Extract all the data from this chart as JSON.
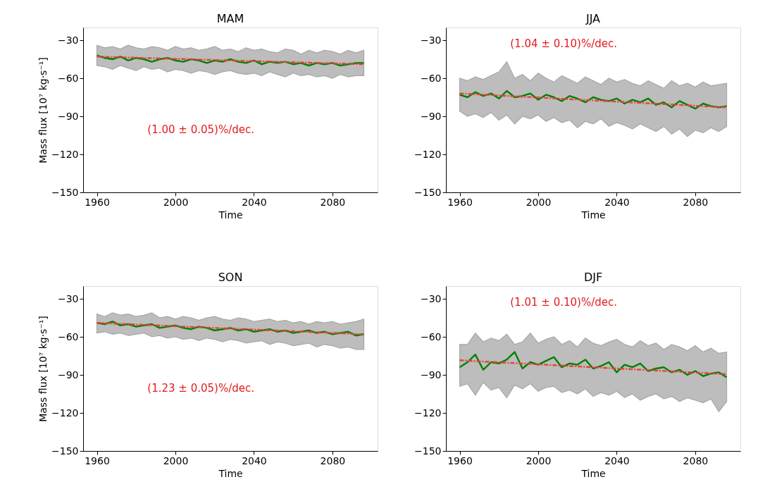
{
  "chart_data": [
    {
      "type": "line",
      "title": "MAM",
      "xlabel": "Time",
      "ylabel": "Mass flux [10⁷ kg·s⁻¹]",
      "xlim": [
        1953,
        2103
      ],
      "xticks": [
        1960,
        2000,
        2040,
        2080
      ],
      "ylim": [
        -150,
        -20
      ],
      "yticks": [
        -150,
        -120,
        -90,
        -60,
        -30
      ],
      "annotations": [
        "(1.00 ± 0.05)%/dec."
      ],
      "x": [
        1960,
        1964,
        1968,
        1972,
        1976,
        1980,
        1984,
        1988,
        1992,
        1996,
        2000,
        2004,
        2008,
        2012,
        2016,
        2020,
        2024,
        2028,
        2032,
        2036,
        2040,
        2044,
        2048,
        2052,
        2056,
        2060,
        2064,
        2068,
        2072,
        2076,
        2080,
        2084,
        2088,
        2092,
        2096
      ],
      "series": [
        {
          "color": "#008000",
          "values": [
            -42,
            -44,
            -45,
            -43,
            -46,
            -44,
            -45,
            -47,
            -45,
            -44,
            -46,
            -47,
            -45,
            -46,
            -48,
            -46,
            -47,
            -45,
            -47,
            -48,
            -46,
            -49,
            -47,
            -48,
            -47,
            -49,
            -48,
            -50,
            -48,
            -49,
            -48,
            -50,
            -49,
            -48,
            -48
          ],
          "upper": [
            -34,
            -36,
            -35,
            -37,
            -34,
            -36,
            -37,
            -35,
            -36,
            -38,
            -35,
            -37,
            -36,
            -38,
            -37,
            -35,
            -38,
            -37,
            -39,
            -36,
            -38,
            -37,
            -39,
            -40,
            -37,
            -38,
            -41,
            -38,
            -40,
            -38,
            -39,
            -41,
            -38,
            -40,
            -38
          ],
          "lower": [
            -50,
            -51,
            -53,
            -50,
            -52,
            -54,
            -51,
            -53,
            -52,
            -55,
            -53,
            -54,
            -56,
            -54,
            -55,
            -57,
            -55,
            -54,
            -56,
            -57,
            -56,
            -58,
            -55,
            -57,
            -59,
            -56,
            -58,
            -57,
            -59,
            -58,
            -60,
            -57,
            -59,
            -58,
            -58
          ]
        },
        {
          "color": "#e8413a",
          "line_style": "dashed",
          "values": [
            -43,
            null,
            null,
            null,
            null,
            null,
            null,
            null,
            null,
            null,
            null,
            null,
            null,
            null,
            null,
            null,
            null,
            null,
            null,
            null,
            null,
            null,
            null,
            null,
            null,
            null,
            null,
            null,
            null,
            null,
            null,
            null,
            null,
            null,
            -49
          ]
        }
      ]
    },
    {
      "type": "line",
      "title": "JJA",
      "xlabel": "Time",
      "xlim": [
        1953,
        2103
      ],
      "xticks": [
        1960,
        2000,
        2040,
        2080
      ],
      "ylim": [
        -150,
        -20
      ],
      "yticks": [
        -150,
        -120,
        -90,
        -60,
        -30
      ],
      "annotations": [
        "(1.04 ± 0.10)%/dec."
      ],
      "x": [
        1960,
        1964,
        1968,
        1972,
        1976,
        1980,
        1984,
        1988,
        1992,
        1996,
        2000,
        2004,
        2008,
        2012,
        2016,
        2020,
        2024,
        2028,
        2032,
        2036,
        2040,
        2044,
        2048,
        2052,
        2056,
        2060,
        2064,
        2068,
        2072,
        2076,
        2080,
        2084,
        2088,
        2092,
        2096
      ],
      "series": [
        {
          "color": "#008000",
          "values": [
            -73,
            -75,
            -71,
            -74,
            -72,
            -76,
            -70,
            -75,
            -74,
            -72,
            -77,
            -73,
            -75,
            -78,
            -74,
            -76,
            -79,
            -75,
            -77,
            -78,
            -76,
            -80,
            -77,
            -79,
            -76,
            -81,
            -79,
            -83,
            -78,
            -81,
            -84,
            -80,
            -82,
            -83,
            -82
          ],
          "upper": [
            -60,
            -62,
            -59,
            -61,
            -58,
            -55,
            -47,
            -60,
            -57,
            -62,
            -56,
            -60,
            -63,
            -58,
            -61,
            -64,
            -59,
            -62,
            -65,
            -60,
            -63,
            -61,
            -64,
            -66,
            -62,
            -65,
            -68,
            -62,
            -66,
            -64,
            -67,
            -63,
            -66,
            -65,
            -64
          ],
          "lower": [
            -86,
            -90,
            -88,
            -91,
            -87,
            -93,
            -89,
            -96,
            -90,
            -92,
            -89,
            -94,
            -91,
            -95,
            -93,
            -99,
            -94,
            -96,
            -92,
            -98,
            -95,
            -97,
            -100,
            -96,
            -99,
            -102,
            -98,
            -104,
            -100,
            -106,
            -101,
            -103,
            -99,
            -102,
            -98
          ]
        },
        {
          "color": "#e8413a",
          "line_style": "dashed",
          "values": [
            -72,
            null,
            null,
            null,
            null,
            null,
            null,
            null,
            null,
            null,
            null,
            null,
            null,
            null,
            null,
            null,
            null,
            null,
            null,
            null,
            null,
            null,
            null,
            null,
            null,
            null,
            null,
            null,
            null,
            null,
            null,
            null,
            null,
            null,
            -83
          ]
        }
      ]
    },
    {
      "type": "line",
      "title": "SON",
      "xlabel": "Time",
      "ylabel": "Mass flux [10⁷ kg·s⁻¹]",
      "xlim": [
        1953,
        2103
      ],
      "xticks": [
        1960,
        2000,
        2040,
        2080
      ],
      "ylim": [
        -150,
        -20
      ],
      "yticks": [
        -150,
        -120,
        -90,
        -60,
        -30
      ],
      "annotations": [
        "(1.23 ± 0.05)%/dec."
      ],
      "x": [
        1960,
        1964,
        1968,
        1972,
        1976,
        1980,
        1984,
        1988,
        1992,
        1996,
        2000,
        2004,
        2008,
        2012,
        2016,
        2020,
        2024,
        2028,
        2032,
        2036,
        2040,
        2044,
        2048,
        2052,
        2056,
        2060,
        2064,
        2068,
        2072,
        2076,
        2080,
        2084,
        2088,
        2092,
        2096
      ],
      "series": [
        {
          "color": "#008000",
          "values": [
            -49,
            -50,
            -48,
            -51,
            -50,
            -52,
            -51,
            -50,
            -53,
            -52,
            -51,
            -53,
            -54,
            -52,
            -53,
            -55,
            -54,
            -53,
            -55,
            -54,
            -56,
            -55,
            -54,
            -56,
            -55,
            -57,
            -56,
            -55,
            -57,
            -56,
            -58,
            -57,
            -56,
            -59,
            -58
          ],
          "upper": [
            -42,
            -44,
            -41,
            -43,
            -42,
            -44,
            -43,
            -41,
            -45,
            -44,
            -46,
            -44,
            -45,
            -47,
            -45,
            -44,
            -46,
            -47,
            -45,
            -46,
            -48,
            -47,
            -46,
            -48,
            -47,
            -49,
            -48,
            -50,
            -48,
            -49,
            -48,
            -50,
            -49,
            -48,
            -46
          ],
          "lower": [
            -57,
            -56,
            -58,
            -57,
            -59,
            -58,
            -57,
            -60,
            -59,
            -61,
            -60,
            -62,
            -61,
            -63,
            -61,
            -62,
            -64,
            -62,
            -63,
            -65,
            -64,
            -63,
            -66,
            -64,
            -65,
            -67,
            -66,
            -65,
            -68,
            -66,
            -67,
            -69,
            -68,
            -70,
            -70
          ]
        },
        {
          "color": "#e8413a",
          "line_style": "dashed",
          "values": [
            -49,
            null,
            null,
            null,
            null,
            null,
            null,
            null,
            null,
            null,
            null,
            null,
            null,
            null,
            null,
            null,
            null,
            null,
            null,
            null,
            null,
            null,
            null,
            null,
            null,
            null,
            null,
            null,
            null,
            null,
            null,
            null,
            null,
            null,
            -58
          ]
        }
      ]
    },
    {
      "type": "line",
      "title": "DJF",
      "xlabel": "Time",
      "xlim": [
        1953,
        2103
      ],
      "xticks": [
        1960,
        2000,
        2040,
        2080
      ],
      "ylim": [
        -150,
        -20
      ],
      "yticks": [
        -150,
        -120,
        -90,
        -60,
        -30
      ],
      "annotations": [
        "(1.01 ± 0.10)%/dec."
      ],
      "x": [
        1960,
        1964,
        1968,
        1972,
        1976,
        1980,
        1984,
        1988,
        1992,
        1996,
        2000,
        2004,
        2008,
        2012,
        2016,
        2020,
        2024,
        2028,
        2032,
        2036,
        2040,
        2044,
        2048,
        2052,
        2056,
        2060,
        2064,
        2068,
        2072,
        2076,
        2080,
        2084,
        2088,
        2092,
        2096
      ],
      "series": [
        {
          "color": "#008000",
          "values": [
            -84,
            -80,
            -74,
            -86,
            -80,
            -81,
            -78,
            -72,
            -85,
            -80,
            -82,
            -79,
            -76,
            -84,
            -81,
            -82,
            -78,
            -85,
            -83,
            -80,
            -88,
            -82,
            -84,
            -81,
            -87,
            -85,
            -84,
            -88,
            -86,
            -90,
            -87,
            -91,
            -89,
            -88,
            -92
          ],
          "upper": [
            -66,
            -66,
            -57,
            -64,
            -61,
            -63,
            -58,
            -66,
            -64,
            -57,
            -65,
            -62,
            -60,
            -66,
            -63,
            -68,
            -61,
            -65,
            -67,
            -64,
            -62,
            -66,
            -68,
            -63,
            -67,
            -65,
            -70,
            -66,
            -68,
            -71,
            -67,
            -72,
            -69,
            -73,
            -72
          ],
          "lower": [
            -99,
            -97,
            -106,
            -96,
            -102,
            -100,
            -108,
            -98,
            -101,
            -97,
            -103,
            -100,
            -99,
            -104,
            -102,
            -105,
            -101,
            -107,
            -104,
            -106,
            -103,
            -108,
            -105,
            -110,
            -107,
            -105,
            -109,
            -107,
            -111,
            -108,
            -110,
            -112,
            -109,
            -119,
            -111
          ]
        },
        {
          "color": "#e8413a",
          "line_style": "dashed",
          "values": [
            -78.5,
            null,
            null,
            null,
            null,
            null,
            null,
            null,
            null,
            null,
            null,
            null,
            null,
            null,
            null,
            null,
            null,
            null,
            null,
            null,
            null,
            null,
            null,
            null,
            null,
            null,
            null,
            null,
            null,
            null,
            null,
            null,
            null,
            null,
            -89.5
          ]
        }
      ]
    }
  ]
}
